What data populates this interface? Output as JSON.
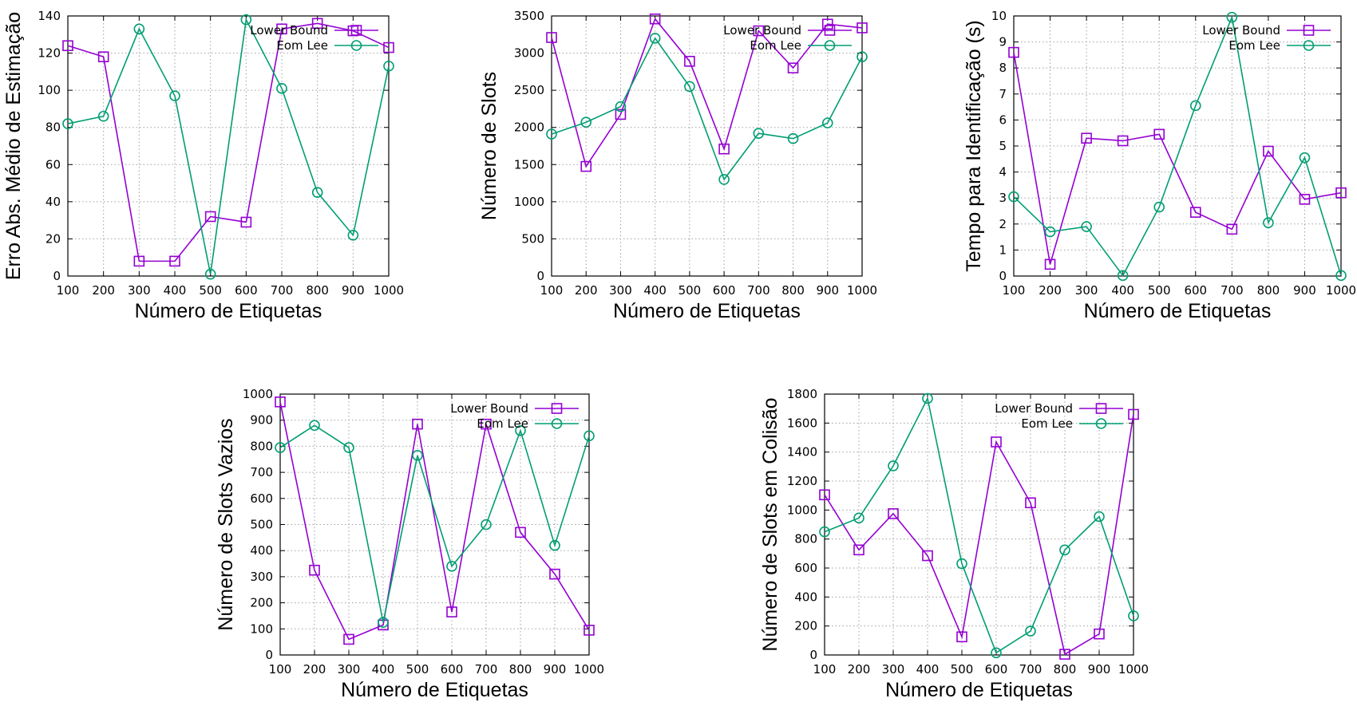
{
  "chart_data": [
    {
      "type": "line",
      "xlabel": "Número de Etiquetas",
      "ylabel": "Erro Abs. Médio de Estimação",
      "x": [
        100,
        200,
        300,
        400,
        500,
        600,
        700,
        800,
        900,
        1000
      ],
      "ylim": [
        0,
        140
      ],
      "yticks": [
        0,
        20,
        40,
        60,
        80,
        100,
        120,
        140
      ],
      "grid": true,
      "legend_position": "top-right",
      "series": [
        {
          "name": "Lower Bound",
          "color": "#9400d3",
          "marker": "square",
          "values": [
            124,
            118,
            8,
            8,
            32,
            29,
            133,
            136,
            132,
            123
          ]
        },
        {
          "name": "Eom Lee",
          "color": "#009e73",
          "marker": "circle",
          "values": [
            82,
            86,
            133,
            97,
            1,
            138,
            101,
            45,
            22,
            113
          ]
        }
      ]
    },
    {
      "type": "line",
      "xlabel": "Número de Etiquetas",
      "ylabel": "Número de Slots",
      "x": [
        100,
        200,
        300,
        400,
        500,
        600,
        700,
        800,
        900,
        1000
      ],
      "ylim": [
        0,
        3500
      ],
      "yticks": [
        0,
        500,
        1000,
        1500,
        2000,
        2500,
        3000,
        3500
      ],
      "grid": true,
      "legend_position": "top-right",
      "series": [
        {
          "name": "Lower Bound",
          "color": "#9400d3",
          "marker": "square",
          "values": [
            3210,
            1475,
            2175,
            3460,
            2890,
            1710,
            3300,
            2800,
            3390,
            3340
          ]
        },
        {
          "name": "Eom Lee",
          "color": "#009e73",
          "marker": "circle",
          "values": [
            1910,
            2070,
            2280,
            3200,
            2550,
            1300,
            1920,
            1850,
            2060,
            2950
          ]
        }
      ]
    },
    {
      "type": "line",
      "xlabel": "Número de Etiquetas",
      "ylabel": "Tempo para Identificação (s)",
      "x": [
        100,
        200,
        300,
        400,
        500,
        600,
        700,
        800,
        900,
        1000
      ],
      "ylim": [
        0,
        10
      ],
      "yticks": [
        0,
        1,
        2,
        3,
        4,
        5,
        6,
        7,
        8,
        9,
        10
      ],
      "grid": true,
      "legend_position": "top-right",
      "series": [
        {
          "name": "Lower Bound",
          "color": "#9400d3",
          "marker": "square",
          "values": [
            8.6,
            0.45,
            5.3,
            5.2,
            5.45,
            2.45,
            1.8,
            4.8,
            2.95,
            3.2
          ]
        },
        {
          "name": "Eom Lee",
          "color": "#009e73",
          "marker": "circle",
          "values": [
            3.05,
            1.7,
            1.9,
            0.02,
            2.65,
            6.55,
            9.95,
            2.05,
            4.55,
            0.02
          ]
        }
      ]
    },
    {
      "type": "line",
      "xlabel": "Número de Etiquetas",
      "ylabel": "Número de Slots Vazios",
      "x": [
        100,
        200,
        300,
        400,
        500,
        600,
        700,
        800,
        900,
        1000
      ],
      "ylim": [
        0,
        1000
      ],
      "yticks": [
        0,
        100,
        200,
        300,
        400,
        500,
        600,
        700,
        800,
        900,
        1000
      ],
      "grid": true,
      "legend_position": "top-right",
      "series": [
        {
          "name": "Lower Bound",
          "color": "#9400d3",
          "marker": "square",
          "values": [
            970,
            325,
            60,
            115,
            885,
            165,
            885,
            470,
            310,
            95
          ]
        },
        {
          "name": "Eom Lee",
          "color": "#009e73",
          "marker": "circle",
          "values": [
            795,
            880,
            795,
            125,
            765,
            340,
            500,
            860,
            420,
            840
          ]
        }
      ]
    },
    {
      "type": "line",
      "xlabel": "Número de Etiquetas",
      "ylabel": "Número de Slots em Colisão",
      "x": [
        100,
        200,
        300,
        400,
        500,
        600,
        700,
        800,
        900,
        1000
      ],
      "ylim": [
        0,
        1800
      ],
      "yticks": [
        0,
        200,
        400,
        600,
        800,
        1000,
        1200,
        1400,
        1600,
        1800
      ],
      "grid": true,
      "legend_position": "top-right",
      "series": [
        {
          "name": "Lower Bound",
          "color": "#9400d3",
          "marker": "square",
          "values": [
            1105,
            725,
            975,
            685,
            125,
            1470,
            1050,
            5,
            145,
            1660
          ]
        },
        {
          "name": "Eom Lee",
          "color": "#009e73",
          "marker": "circle",
          "values": [
            850,
            945,
            1305,
            1770,
            630,
            15,
            165,
            725,
            955,
            270
          ]
        }
      ]
    }
  ]
}
